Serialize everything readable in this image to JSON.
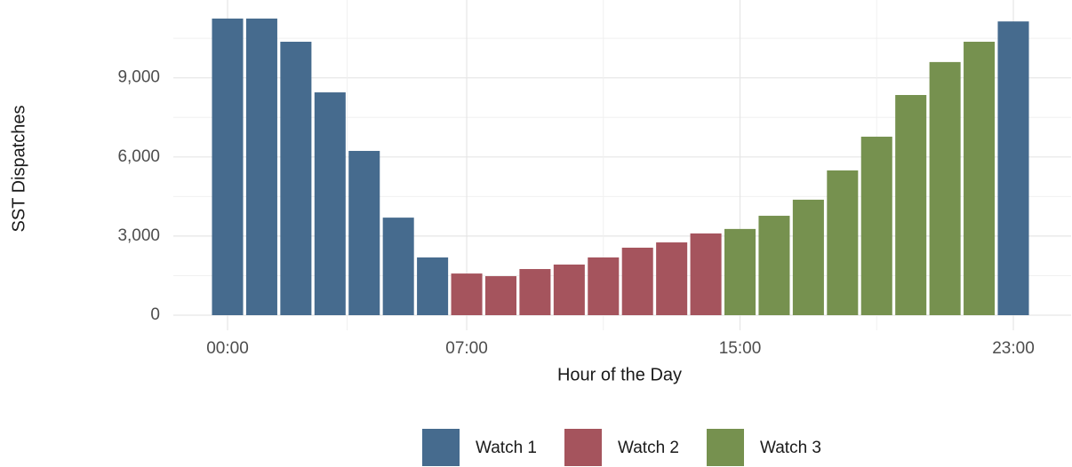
{
  "chart_data": {
    "type": "bar",
    "x_label": "Hour of the Day",
    "y_label": "SST Dispatches",
    "categories": [
      "00:00",
      null,
      null,
      null,
      null,
      null,
      null,
      "07:00",
      null,
      null,
      null,
      null,
      null,
      null,
      null,
      "15:00",
      null,
      null,
      null,
      null,
      null,
      null,
      null,
      "23:00"
    ],
    "series": [
      {
        "name": "Watch 1",
        "color": "#466b8e",
        "values": [
          11250,
          11250,
          10370,
          8450,
          6230,
          3700,
          2190,
          null,
          null,
          null,
          null,
          null,
          null,
          null,
          null,
          null,
          null,
          null,
          null,
          null,
          null,
          null,
          null,
          11140
        ]
      },
      {
        "name": "Watch 2",
        "color": "#a5545d",
        "values": [
          null,
          null,
          null,
          null,
          null,
          null,
          null,
          1580,
          1480,
          1750,
          1920,
          2190,
          2560,
          2760,
          3100,
          null,
          null,
          null,
          null,
          null,
          null,
          null,
          null,
          null
        ]
      },
      {
        "name": "Watch 3",
        "color": "#76914f",
        "values": [
          null,
          null,
          null,
          null,
          null,
          null,
          null,
          null,
          null,
          null,
          null,
          null,
          null,
          null,
          null,
          3270,
          3770,
          4380,
          5490,
          6770,
          8350,
          9600,
          10370,
          null
        ]
      }
    ],
    "ylim": [
      0,
      11300
    ],
    "yticks": [
      0,
      {
        "value": 3000,
        "label": "3,000"
      },
      {
        "value": 6000,
        "label": "6,000"
      },
      {
        "value": 9000,
        "label": "9,000"
      }
    ],
    "minor_yticks": [
      1500,
      4500,
      7500,
      10500
    ],
    "grid": true,
    "legend": "bottom"
  }
}
